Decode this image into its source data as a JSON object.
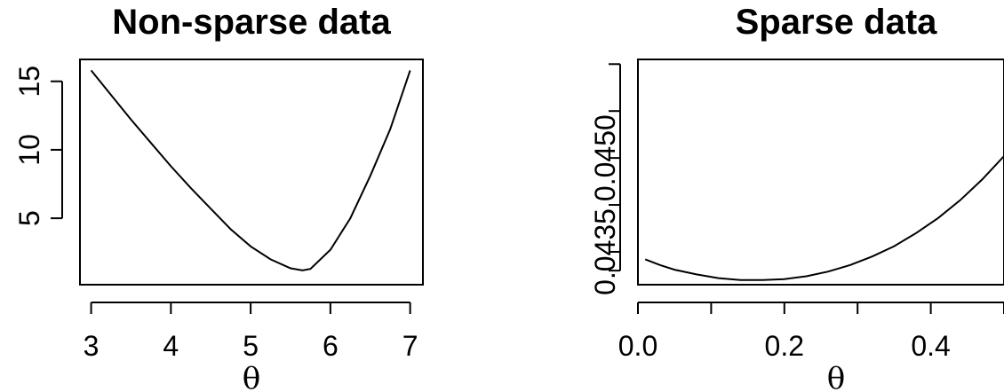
{
  "chart_data": [
    {
      "type": "line",
      "title": "Non-sparse data",
      "xlabel": "θ",
      "ylabel": "",
      "xlim": [
        2.86,
        7.16
      ],
      "ylim": [
        0.15,
        16.6
      ],
      "x_ticks": [
        3,
        4,
        5,
        6,
        7
      ],
      "x_tick_labels": [
        "3",
        "4",
        "5",
        "6",
        "7"
      ],
      "y_ticks": [
        5,
        10,
        15
      ],
      "y_tick_labels": [
        "5",
        "10",
        "15"
      ],
      "series": [
        {
          "x": [
            3.0,
            3.25,
            3.5,
            3.75,
            4.0,
            4.25,
            4.5,
            4.75,
            5.0,
            5.25,
            5.5,
            5.65,
            5.75,
            6.0,
            6.25,
            6.5,
            6.75,
            7.0
          ],
          "y": [
            15.8,
            14.0,
            12.2,
            10.5,
            8.8,
            7.2,
            5.7,
            4.2,
            2.95,
            2.0,
            1.35,
            1.2,
            1.3,
            2.7,
            5.0,
            8.1,
            11.5,
            15.8
          ]
        }
      ]
    },
    {
      "type": "line",
      "title": "Sparse data",
      "xlabel": "θ",
      "ylabel": "",
      "xlim": [
        0.0,
        0.5
      ],
      "ylim": [
        0.04315,
        0.04555
      ],
      "x_ticks": [
        0.0,
        0.1,
        0.2,
        0.3,
        0.4,
        0.5
      ],
      "x_tick_labels": [
        "0.0",
        "",
        "0.2",
        "",
        "0.4",
        ""
      ],
      "y_ticks": [
        0.0433,
        0.0435,
        0.044,
        0.0445,
        0.045,
        0.0455
      ],
      "y_tick_labels": [
        "",
        "0.0435",
        "",
        "0.0450",
        "",
        ""
      ],
      "series": [
        {
          "x": [
            0.01,
            0.03,
            0.05,
            0.08,
            0.11,
            0.14,
            0.17,
            0.2,
            0.23,
            0.26,
            0.29,
            0.32,
            0.35,
            0.38,
            0.41,
            0.44,
            0.47,
            0.5
          ],
          "y": [
            0.04342,
            0.04336,
            0.04331,
            0.04326,
            0.04322,
            0.0432,
            0.0432,
            0.04321,
            0.04324,
            0.04329,
            0.04336,
            0.04345,
            0.04356,
            0.0437,
            0.04386,
            0.04405,
            0.04427,
            0.04452
          ]
        }
      ]
    }
  ]
}
